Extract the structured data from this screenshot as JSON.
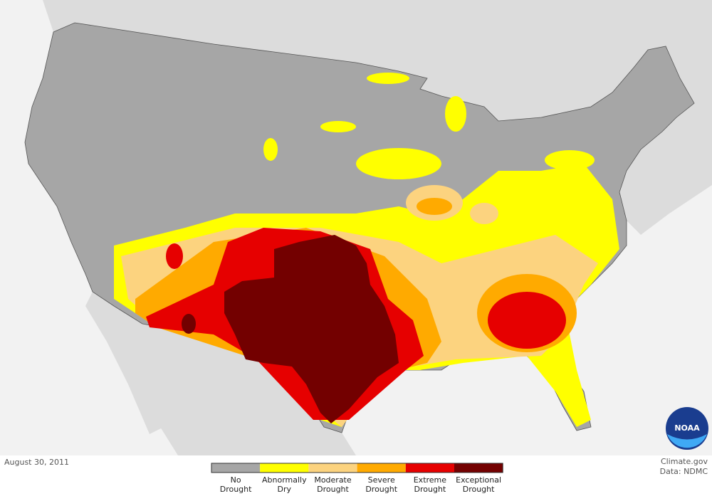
{
  "date": "August 30, 2011",
  "legend": {
    "items": [
      {
        "label": [
          "No",
          "Drought"
        ],
        "color": "#a6a6a6"
      },
      {
        "label": [
          "Abnormally",
          "Dry"
        ],
        "color": "#ffff00"
      },
      {
        "label": [
          "Moderate",
          "Drought"
        ],
        "color": "#fcd37f"
      },
      {
        "label": [
          "Severe",
          "Drought"
        ],
        "color": "#ffaa00"
      },
      {
        "label": [
          "Extreme",
          "Drought"
        ],
        "color": "#e60000"
      },
      {
        "label": [
          "Exceptional",
          "Drought"
        ],
        "color": "#730000"
      }
    ]
  },
  "credit": "Climate.gov",
  "source": "Data: NDMC",
  "logo": "NOAA"
}
